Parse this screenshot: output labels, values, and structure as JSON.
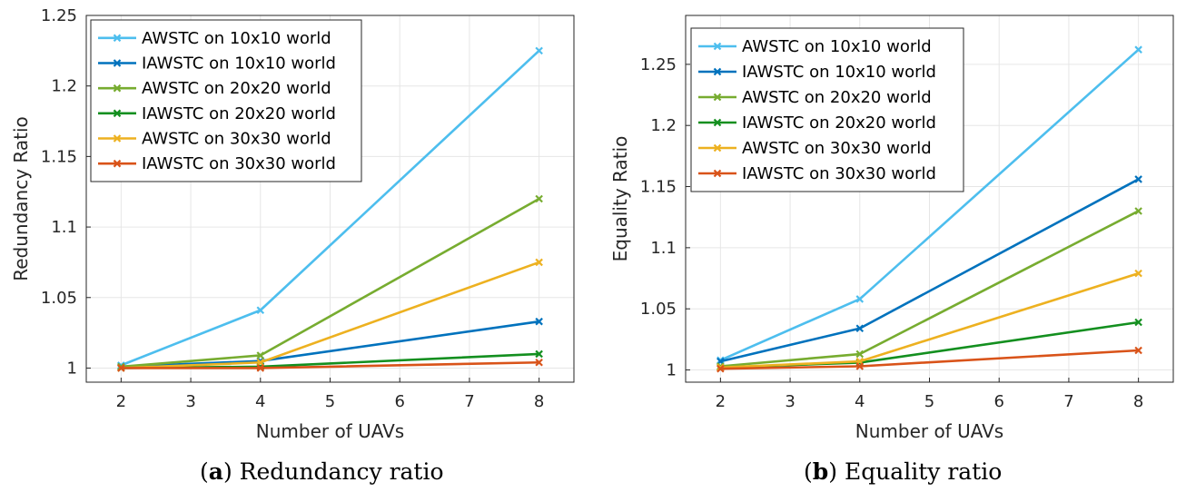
{
  "chart_data": [
    {
      "type": "line",
      "panel": "a",
      "caption_letter": "a",
      "caption_text": "Redundancy ratio",
      "title": "",
      "xlabel": "Number of UAVs",
      "ylabel": "Redundancy Ratio",
      "xlim": [
        1.5,
        8.5
      ],
      "ylim": [
        0.99,
        1.25
      ],
      "xticks": [
        2,
        3,
        4,
        5,
        6,
        7,
        8
      ],
      "yticks": [
        1,
        1.05,
        1.1,
        1.15,
        1.2,
        1.25
      ],
      "ytick_labels": [
        "1",
        "1.05",
        "1.1",
        "1.15",
        "1.2",
        "1.25"
      ],
      "grid": true,
      "legend_position": "top-left",
      "x": [
        2,
        4,
        8
      ],
      "series": [
        {
          "name": "AWSTC on 10x10 world",
          "color": "#4DBEEE",
          "values": [
            1.002,
            1.041,
            1.225
          ]
        },
        {
          "name": "IAWSTC on 10x10 world",
          "color": "#0072BD",
          "values": [
            1.001,
            1.005,
            1.033
          ]
        },
        {
          "name": "AWSTC on 20x20 world",
          "color": "#77AC30",
          "values": [
            1.001,
            1.009,
            1.12
          ]
        },
        {
          "name": "IAWSTC on 20x20 world",
          "color": "#138F1F",
          "values": [
            1.0,
            1.001,
            1.01
          ]
        },
        {
          "name": "AWSTC on 30x30 world",
          "color": "#EDB120",
          "values": [
            1.0,
            1.004,
            1.075
          ]
        },
        {
          "name": "IAWSTC on 30x30 world",
          "color": "#D95319",
          "values": [
            1.0,
            1.0,
            1.004
          ]
        }
      ]
    },
    {
      "type": "line",
      "panel": "b",
      "caption_letter": "b",
      "caption_text": "Equality ratio",
      "title": "",
      "xlabel": "Number of UAVs",
      "ylabel": "Equality Ratio",
      "xlim": [
        1.5,
        8.5
      ],
      "ylim": [
        0.99,
        1.29
      ],
      "xticks": [
        2,
        3,
        4,
        5,
        6,
        7,
        8
      ],
      "yticks": [
        1,
        1.05,
        1.1,
        1.15,
        1.2,
        1.25
      ],
      "ytick_labels": [
        "1",
        "1.05",
        "1.1",
        "1.15",
        "1.2",
        "1.25"
      ],
      "grid": true,
      "legend_position": "top-left",
      "x": [
        2,
        4,
        8
      ],
      "series": [
        {
          "name": "AWSTC on 10x10 world",
          "color": "#4DBEEE",
          "values": [
            1.008,
            1.058,
            1.262
          ]
        },
        {
          "name": "IAWSTC on 10x10 world",
          "color": "#0072BD",
          "values": [
            1.007,
            1.034,
            1.156
          ]
        },
        {
          "name": "AWSTC on 20x20 world",
          "color": "#77AC30",
          "values": [
            1.003,
            1.013,
            1.13
          ]
        },
        {
          "name": "IAWSTC on 20x20 world",
          "color": "#138F1F",
          "values": [
            1.002,
            1.006,
            1.039
          ]
        },
        {
          "name": "AWSTC on 30x30 world",
          "color": "#EDB120",
          "values": [
            1.002,
            1.007,
            1.079
          ]
        },
        {
          "name": "IAWSTC on 30x30 world",
          "color": "#D95319",
          "values": [
            1.001,
            1.003,
            1.016
          ]
        }
      ]
    }
  ]
}
